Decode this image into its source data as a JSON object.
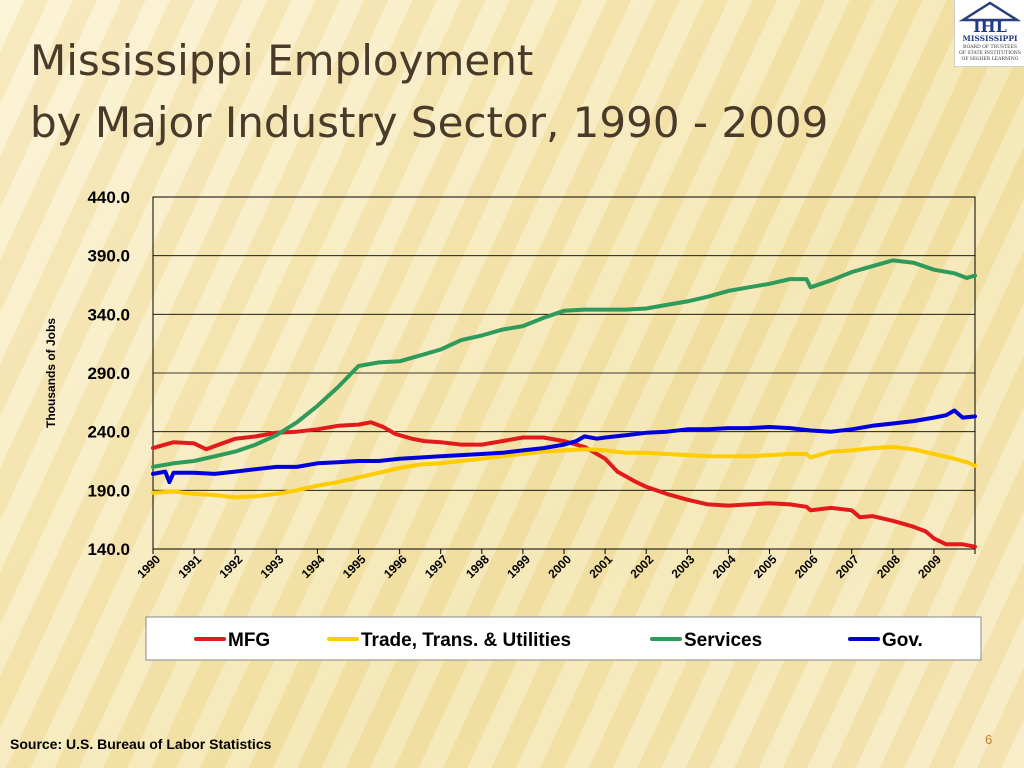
{
  "slide": {
    "title_line1": "Mississippi Employment",
    "title_line2": "by Major Industry Sector, 1990 - 2009",
    "source": "Source: U.S. Bureau of Labor Statistics",
    "page_number": "6"
  },
  "logo": {
    "mark": "IHL",
    "line1": "MISSISSIPPI",
    "line2": "BOARD OF TRUSTEES",
    "line3": "OF STATE INSTITUTIONS",
    "line4": "OF HIGHER LEARNING"
  },
  "colors": {
    "MFG": "#e31a1c",
    "Trade, Trans. & Utilities": "#ffcc00",
    "Services": "#2e9a5b",
    "Gov.": "#0000dd"
  },
  "chart_data": {
    "type": "line",
    "title": "",
    "xlabel": "",
    "ylabel": "Thousands of Jobs",
    "ylim": [
      140.0,
      440.0
    ],
    "y_ticks": [
      "440.0",
      "390.0",
      "340.0",
      "290.0",
      "240.0",
      "190.0",
      "140.0"
    ],
    "x_categories": [
      "1990",
      "1991",
      "1992",
      "1993",
      "1994",
      "1995",
      "1996",
      "1997",
      "1998",
      "1999",
      "2000",
      "2001",
      "2002",
      "2003",
      "2004",
      "2005",
      "2006",
      "2007",
      "2008",
      "2009"
    ],
    "x_range": [
      1990.0,
      2010.0
    ],
    "grid": true,
    "legend_position": "bottom",
    "series": [
      {
        "name": "MFG",
        "points": [
          [
            1990.0,
            226
          ],
          [
            1990.5,
            231
          ],
          [
            1991.0,
            230
          ],
          [
            1991.3,
            225
          ],
          [
            1991.6,
            229
          ],
          [
            1992.0,
            234
          ],
          [
            1992.5,
            236
          ],
          [
            1993.0,
            239
          ],
          [
            1993.5,
            240
          ],
          [
            1994.0,
            242
          ],
          [
            1994.5,
            245
          ],
          [
            1995.0,
            246
          ],
          [
            1995.3,
            248
          ],
          [
            1995.6,
            244
          ],
          [
            1995.9,
            238
          ],
          [
            1996.3,
            234
          ],
          [
            1996.6,
            232
          ],
          [
            1997.0,
            231
          ],
          [
            1997.5,
            229
          ],
          [
            1998.0,
            229
          ],
          [
            1998.5,
            232
          ],
          [
            1999.0,
            235
          ],
          [
            1999.5,
            235
          ],
          [
            2000.0,
            232
          ],
          [
            2000.5,
            227
          ],
          [
            2001.0,
            217
          ],
          [
            2001.3,
            206
          ],
          [
            2001.7,
            198
          ],
          [
            2002.0,
            193
          ],
          [
            2002.5,
            187
          ],
          [
            2003.0,
            182
          ],
          [
            2003.5,
            178
          ],
          [
            2004.0,
            177
          ],
          [
            2004.5,
            178
          ],
          [
            2005.0,
            179
          ],
          [
            2005.5,
            178
          ],
          [
            2005.9,
            176
          ],
          [
            2006.0,
            173
          ],
          [
            2006.5,
            175
          ],
          [
            2007.0,
            173
          ],
          [
            2007.2,
            167
          ],
          [
            2007.5,
            168
          ],
          [
            2008.0,
            164
          ],
          [
            2008.5,
            159
          ],
          [
            2008.8,
            155
          ],
          [
            2009.0,
            149
          ],
          [
            2009.3,
            144
          ],
          [
            2009.7,
            144
          ],
          [
            2010.0,
            142
          ]
        ]
      },
      {
        "name": "Trade, Trans. & Utilities",
        "points": [
          [
            1990.0,
            188
          ],
          [
            1990.5,
            189
          ],
          [
            1991.0,
            187
          ],
          [
            1991.5,
            186
          ],
          [
            1992.0,
            184
          ],
          [
            1992.5,
            185
          ],
          [
            1993.0,
            187
          ],
          [
            1993.5,
            190
          ],
          [
            1994.0,
            194
          ],
          [
            1994.5,
            197
          ],
          [
            1995.0,
            201
          ],
          [
            1995.5,
            205
          ],
          [
            1996.0,
            209
          ],
          [
            1996.5,
            212
          ],
          [
            1997.0,
            213
          ],
          [
            1997.5,
            215
          ],
          [
            1998.0,
            217
          ],
          [
            1998.5,
            219
          ],
          [
            1999.0,
            221
          ],
          [
            1999.5,
            223
          ],
          [
            2000.0,
            224
          ],
          [
            2000.5,
            225
          ],
          [
            2001.0,
            224
          ],
          [
            2001.5,
            222
          ],
          [
            2002.0,
            222
          ],
          [
            2002.5,
            221
          ],
          [
            2003.0,
            220
          ],
          [
            2003.5,
            219
          ],
          [
            2004.0,
            219
          ],
          [
            2004.5,
            219
          ],
          [
            2005.0,
            220
          ],
          [
            2005.5,
            221
          ],
          [
            2005.9,
            221
          ],
          [
            2006.0,
            218
          ],
          [
            2006.5,
            223
          ],
          [
            2007.0,
            224
          ],
          [
            2007.5,
            226
          ],
          [
            2008.0,
            227
          ],
          [
            2008.5,
            225
          ],
          [
            2009.0,
            221
          ],
          [
            2009.5,
            217
          ],
          [
            2009.8,
            214
          ],
          [
            2010.0,
            211
          ]
        ]
      },
      {
        "name": "Services",
        "points": [
          [
            1990.0,
            210
          ],
          [
            1990.5,
            213
          ],
          [
            1991.0,
            215
          ],
          [
            1991.5,
            219
          ],
          [
            1992.0,
            223
          ],
          [
            1992.5,
            229
          ],
          [
            1993.0,
            237
          ],
          [
            1993.5,
            248
          ],
          [
            1994.0,
            262
          ],
          [
            1994.5,
            278
          ],
          [
            1995.0,
            296
          ],
          [
            1995.5,
            299
          ],
          [
            1996.0,
            300
          ],
          [
            1996.5,
            305
          ],
          [
            1997.0,
            310
          ],
          [
            1997.5,
            318
          ],
          [
            1998.0,
            322
          ],
          [
            1998.5,
            327
          ],
          [
            1999.0,
            330
          ],
          [
            1999.5,
            337
          ],
          [
            2000.0,
            343
          ],
          [
            2000.5,
            344
          ],
          [
            2001.0,
            344
          ],
          [
            2001.5,
            344
          ],
          [
            2002.0,
            345
          ],
          [
            2002.5,
            348
          ],
          [
            2003.0,
            351
          ],
          [
            2003.5,
            355
          ],
          [
            2004.0,
            360
          ],
          [
            2004.5,
            363
          ],
          [
            2005.0,
            366
          ],
          [
            2005.5,
            370
          ],
          [
            2005.9,
            370
          ],
          [
            2006.0,
            363
          ],
          [
            2006.5,
            369
          ],
          [
            2007.0,
            376
          ],
          [
            2007.5,
            381
          ],
          [
            2008.0,
            386
          ],
          [
            2008.5,
            384
          ],
          [
            2009.0,
            378
          ],
          [
            2009.5,
            375
          ],
          [
            2009.8,
            371
          ],
          [
            2010.0,
            373
          ]
        ]
      },
      {
        "name": "Gov.",
        "points": [
          [
            1990.0,
            204
          ],
          [
            1990.3,
            206
          ],
          [
            1990.4,
            197
          ],
          [
            1990.5,
            205
          ],
          [
            1991.0,
            205
          ],
          [
            1991.5,
            204
          ],
          [
            1992.0,
            206
          ],
          [
            1992.5,
            208
          ],
          [
            1993.0,
            210
          ],
          [
            1993.5,
            210
          ],
          [
            1994.0,
            213
          ],
          [
            1994.5,
            214
          ],
          [
            1995.0,
            215
          ],
          [
            1995.5,
            215
          ],
          [
            1996.0,
            217
          ],
          [
            1996.5,
            218
          ],
          [
            1997.0,
            219
          ],
          [
            1997.5,
            220
          ],
          [
            1998.0,
            221
          ],
          [
            1998.5,
            222
          ],
          [
            1999.0,
            224
          ],
          [
            1999.5,
            226
          ],
          [
            2000.0,
            229
          ],
          [
            2000.3,
            232
          ],
          [
            2000.5,
            236
          ],
          [
            2000.8,
            234
          ],
          [
            2001.0,
            235
          ],
          [
            2001.5,
            237
          ],
          [
            2002.0,
            239
          ],
          [
            2002.5,
            240
          ],
          [
            2003.0,
            242
          ],
          [
            2003.5,
            242
          ],
          [
            2004.0,
            243
          ],
          [
            2004.5,
            243
          ],
          [
            2005.0,
            244
          ],
          [
            2005.5,
            243
          ],
          [
            2006.0,
            241
          ],
          [
            2006.5,
            240
          ],
          [
            2007.0,
            242
          ],
          [
            2007.5,
            245
          ],
          [
            2008.0,
            247
          ],
          [
            2008.5,
            249
          ],
          [
            2009.0,
            252
          ],
          [
            2009.3,
            254
          ],
          [
            2009.5,
            258
          ],
          [
            2009.7,
            252
          ],
          [
            2010.0,
            253
          ]
        ]
      }
    ]
  }
}
